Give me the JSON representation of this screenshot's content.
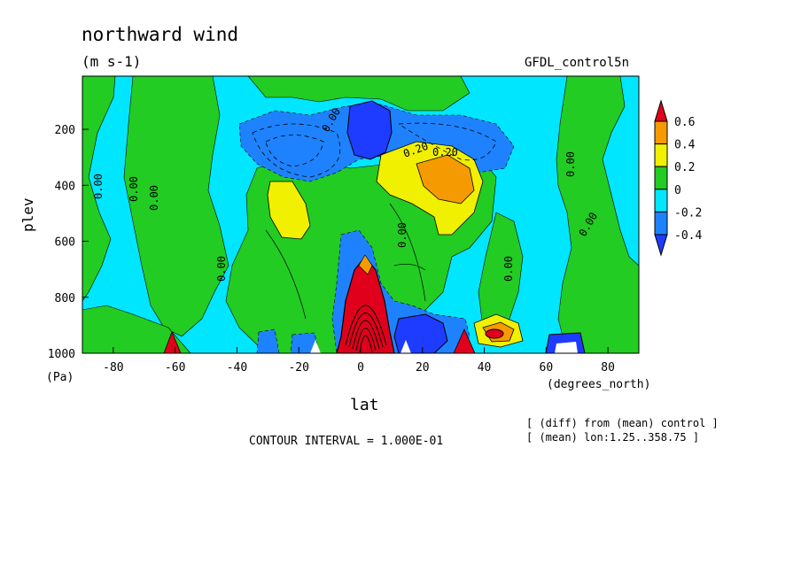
{
  "chart_data": {
    "type": "contour",
    "title": "northward wind",
    "units": "(m s-1)",
    "dataset": "GFDL_control5n",
    "xlabel": "lat",
    "x_units": "(degrees_north)",
    "ylabel": "plev",
    "y_units": "(Pa)",
    "xlim": [
      -90,
      90
    ],
    "ylim": [
      1000,
      10
    ],
    "x_ticks": [
      -80,
      -60,
      -40,
      -20,
      0,
      20,
      40,
      60,
      80
    ],
    "y_ticks": [
      200,
      400,
      600,
      800,
      1000
    ],
    "x_tick_labels": [
      "-80",
      "-60",
      "-40",
      "-20",
      "0",
      "20",
      "40",
      "60",
      "80"
    ],
    "y_tick_labels": [
      "200",
      "400",
      "600",
      "800",
      "1000"
    ],
    "contour_interval_text": "CONTOUR INTERVAL = 1.000E-01",
    "notes": [
      "[ (diff) from (mean) control ]",
      "[ (mean) lon:1.25..358.75 ]"
    ],
    "colorbar": {
      "levels": [
        "0.6",
        "0.4",
        "0.2",
        "0",
        "-0.2",
        "-0.4"
      ],
      "colors": [
        "#e0001c",
        "#f59a00",
        "#f0f000",
        "#22cc22",
        "#00e6ff",
        "#1e82ff",
        "#1e3cff"
      ]
    },
    "contour_labels": [
      "0.00",
      "0.00",
      "0.00",
      "0.00",
      "0.00",
      "0.00",
      "0.00",
      "0.00",
      "0.00",
      "0.20",
      "0.20"
    ],
    "regions": [
      {
        "level": "0 to 0.2",
        "color": "green",
        "lat": [
          -90,
          -45
        ],
        "plev": [
          80,
          1000
        ]
      },
      {
        "level": "0.2 to 0.4",
        "color": "yellow",
        "lat": [
          -30,
          -18
        ],
        "plev": [
          360,
          620
        ]
      },
      {
        "level": "0.2 to 0.4",
        "color": "yellow",
        "lat": [
          6,
          32
        ],
        "plev": [
          280,
          630
        ]
      },
      {
        "level": "0.4 to 0.6",
        "color": "orange",
        "lat": [
          18,
          32
        ],
        "plev": [
          290,
          460
        ]
      },
      {
        "level": "-0.4 to -0.6",
        "color": "blue",
        "lat": [
          -6,
          10
        ],
        "plev": [
          120,
          330
        ]
      },
      {
        "level": "> 0.6",
        "color": "red",
        "lat": [
          -8,
          10
        ],
        "plev": [
          620,
          1000
        ]
      },
      {
        "level": "0.4 to 0.6",
        "color": "orange",
        "lat": [
          38,
          48
        ],
        "plev": [
          880,
          970
        ]
      }
    ]
  }
}
